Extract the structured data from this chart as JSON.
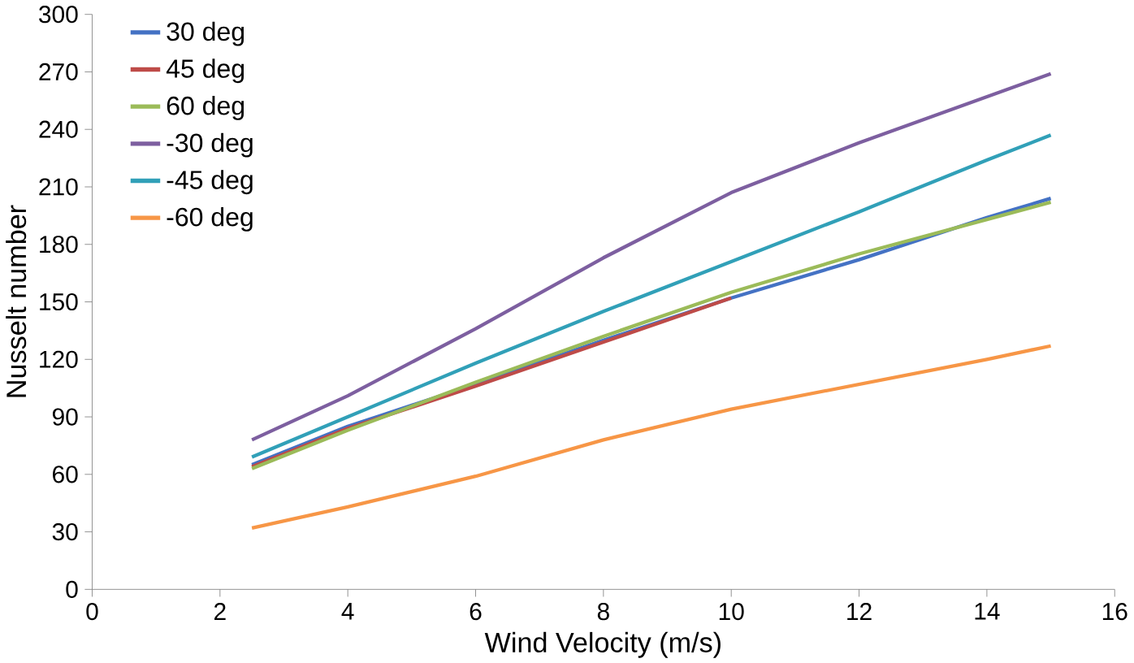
{
  "chart_data": {
    "type": "line",
    "xlabel": "Wind Velocity (m/s)",
    "ylabel": "Nusselt number",
    "xlim": [
      0,
      16
    ],
    "ylim": [
      0,
      300
    ],
    "xticks": [
      0,
      2,
      4,
      6,
      8,
      10,
      12,
      14,
      16
    ],
    "yticks": [
      0,
      30,
      60,
      90,
      120,
      150,
      180,
      210,
      240,
      270,
      300
    ],
    "legend": "top left",
    "marker": "none",
    "series": [
      {
        "name": "30 deg",
        "color": "#4472c4",
        "x": [
          2.5,
          4,
          6,
          8,
          10,
          12,
          14,
          15
        ],
        "values": [
          65,
          85,
          107,
          130,
          152,
          172,
          194,
          204
        ]
      },
      {
        "name": "45 deg",
        "color": "#be4b48",
        "x": [
          2.5,
          4,
          6,
          8,
          10
        ],
        "values": [
          64,
          84,
          106,
          129,
          152
        ]
      },
      {
        "name": "60 deg",
        "color": "#9bbb59",
        "x": [
          2.5,
          4,
          6,
          8,
          10,
          12,
          14,
          15
        ],
        "values": [
          63,
          83,
          108,
          132,
          155,
          175,
          193,
          202
        ]
      },
      {
        "name": "-30 deg",
        "color": "#7d5fa0",
        "x": [
          2.5,
          4,
          6,
          8,
          10,
          12,
          14,
          15
        ],
        "values": [
          78,
          101,
          136,
          173,
          207,
          233,
          257,
          269
        ]
      },
      {
        "name": "-45 deg",
        "color": "#31a0b8",
        "x": [
          2.5,
          4,
          6,
          8,
          10,
          12,
          14,
          15
        ],
        "values": [
          69,
          90,
          118,
          145,
          171,
          197,
          224,
          237
        ]
      },
      {
        "name": "-60 deg",
        "color": "#f79646",
        "x": [
          2.5,
          4,
          6,
          8,
          10,
          12,
          14,
          15
        ],
        "values": [
          32,
          43,
          59,
          78,
          94,
          107,
          120,
          127
        ]
      }
    ]
  }
}
